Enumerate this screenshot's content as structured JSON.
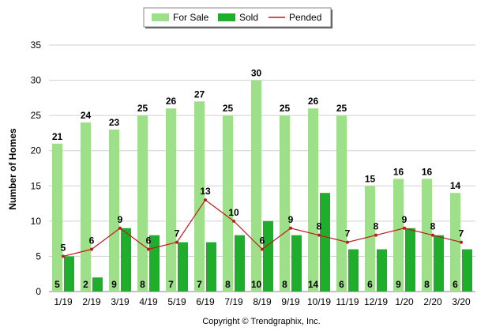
{
  "chart_data": {
    "type": "bar",
    "categories": [
      "1/19",
      "2/19",
      "3/19",
      "4/19",
      "5/19",
      "6/19",
      "7/19",
      "8/19",
      "9/19",
      "10/19",
      "11/19",
      "12/19",
      "1/20",
      "2/20",
      "3/20"
    ],
    "series": [
      {
        "name": "For Sale",
        "kind": "bar",
        "color": "#9ee08a",
        "values": [
          21,
          24,
          23,
          25,
          26,
          27,
          25,
          30,
          25,
          26,
          25,
          15,
          16,
          16,
          14
        ]
      },
      {
        "name": "Sold",
        "kind": "bar",
        "color": "#1fae2c",
        "values": [
          5,
          2,
          9,
          8,
          7,
          7,
          8,
          10,
          8,
          14,
          6,
          6,
          9,
          8,
          6
        ]
      },
      {
        "name": "Pended",
        "kind": "line",
        "color": "#c0181c",
        "values": [
          5,
          6,
          9,
          6,
          7,
          13,
          10,
          6,
          9,
          8,
          7,
          8,
          9,
          8,
          7
        ]
      }
    ],
    "ylabel": "Number of Homes",
    "xlabel": "",
    "ylim": [
      0,
      35
    ],
    "yticks": [
      0,
      5,
      10,
      15,
      20,
      25,
      30,
      35
    ],
    "grid": true,
    "legend_position": "top-center"
  },
  "footer": {
    "copyright": "Copyright © Trendgraphix, Inc."
  }
}
